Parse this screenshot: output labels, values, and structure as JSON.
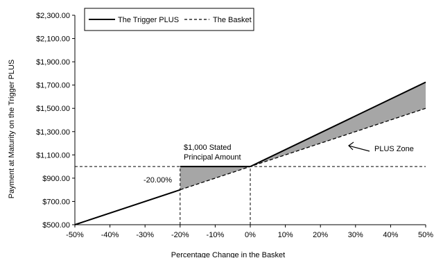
{
  "chart_data": {
    "type": "line",
    "xlabel": "Percentage Change in the Basket",
    "ylabel": "Payment at Maturity on the Trigger PLUS",
    "xlim": [
      -50,
      50
    ],
    "ylim": [
      500,
      2300
    ],
    "x_ticks": [
      -50,
      -40,
      -30,
      -20,
      -10,
      0,
      10,
      20,
      30,
      40,
      50
    ],
    "x_tick_labels": [
      "-50%",
      "-40%",
      "-30%",
      "-20%",
      "-10%",
      "0%",
      "10%",
      "20%",
      "30%",
      "40%",
      "50%"
    ],
    "y_ticks": [
      500,
      700,
      900,
      1100,
      1300,
      1500,
      1700,
      1900,
      2100,
      2300
    ],
    "y_tick_labels": [
      "$500.00",
      "$700.00",
      "$900.00",
      "$1,100.00",
      "$1,300.00",
      "$1,500.00",
      "$1,700.00",
      "$1,900.00",
      "$2,100.00",
      "$2,300.00"
    ],
    "grid": false,
    "legend": {
      "placement": "top-left",
      "entries": [
        "The Trigger PLUS",
        "The Basket"
      ]
    },
    "series": [
      {
        "name": "The Trigger PLUS",
        "style": "solid",
        "color": "#000000",
        "segments": [
          [
            [
              -50,
              500
            ],
            [
              -20,
              800
            ]
          ],
          [
            [
              -20,
              1000
            ],
            [
              0,
              1000
            ]
          ],
          [
            [
              0,
              1000
            ],
            [
              50,
              1725
            ]
          ]
        ]
      },
      {
        "name": "The Basket",
        "style": "dashed",
        "color": "#000000",
        "points": [
          [
            -50,
            500
          ],
          [
            50,
            1500
          ]
        ]
      }
    ],
    "reference_lines": [
      {
        "orientation": "horizontal",
        "y": 1000,
        "x_range": [
          -50,
          50
        ],
        "style": "dashed"
      },
      {
        "orientation": "vertical",
        "x": -20,
        "y_range": [
          500,
          1000
        ],
        "style": "dashed"
      },
      {
        "orientation": "vertical",
        "x": 0,
        "y_range": [
          500,
          1000
        ],
        "style": "dashed"
      }
    ],
    "shaded_regions": [
      {
        "polygon": [
          [
            -20,
            1000
          ],
          [
            0,
            1000
          ],
          [
            -20,
            800
          ]
        ],
        "color": "#a6a6a6"
      },
      {
        "polygon": [
          [
            0,
            1000
          ],
          [
            50,
            1725
          ],
          [
            50,
            1500
          ]
        ],
        "color": "#a6a6a6"
      }
    ],
    "annotations": {
      "stated_principal_line1": "$1,000 Stated",
      "stated_principal_line2": "Principal Amount",
      "trigger_level": "-20.00%",
      "plus_zone": "PLUS Zone"
    }
  }
}
